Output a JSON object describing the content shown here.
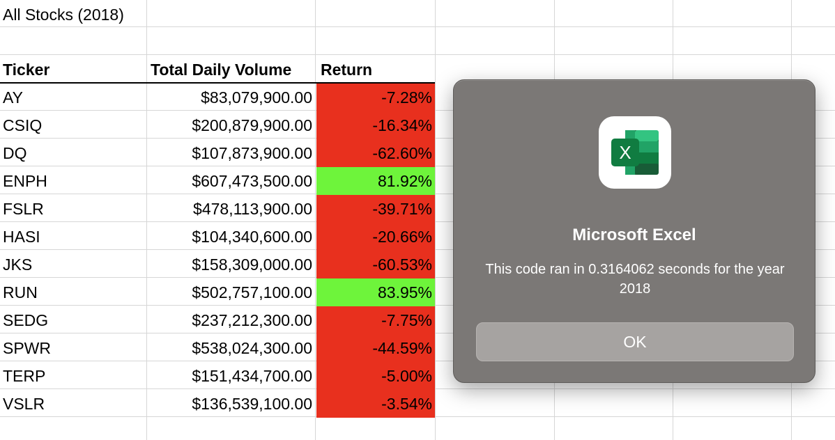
{
  "sheet": {
    "title": "All Stocks (2018)",
    "headers": {
      "ticker": "Ticker",
      "volume": "Total Daily Volume",
      "return": "Return"
    },
    "rows": [
      {
        "ticker": "AY",
        "volume": "$83,079,900.00",
        "return": "-7.28%",
        "status": "negative"
      },
      {
        "ticker": "CSIQ",
        "volume": "$200,879,900.00",
        "return": "-16.34%",
        "status": "negative"
      },
      {
        "ticker": "DQ",
        "volume": "$107,873,900.00",
        "return": "-62.60%",
        "status": "negative"
      },
      {
        "ticker": "ENPH",
        "volume": "$607,473,500.00",
        "return": "81.92%",
        "status": "positive"
      },
      {
        "ticker": "FSLR",
        "volume": "$478,113,900.00",
        "return": "-39.71%",
        "status": "negative"
      },
      {
        "ticker": "HASI",
        "volume": "$104,340,600.00",
        "return": "-20.66%",
        "status": "negative"
      },
      {
        "ticker": "JKS",
        "volume": "$158,309,000.00",
        "return": "-60.53%",
        "status": "negative"
      },
      {
        "ticker": "RUN",
        "volume": "$502,757,100.00",
        "return": "83.95%",
        "status": "positive"
      },
      {
        "ticker": "SEDG",
        "volume": "$237,212,300.00",
        "return": "-7.75%",
        "status": "negative"
      },
      {
        "ticker": "SPWR",
        "volume": "$538,024,300.00",
        "return": "-44.59%",
        "status": "negative"
      },
      {
        "ticker": "TERP",
        "volume": "$151,434,700.00",
        "return": "-5.00%",
        "status": "negative"
      },
      {
        "ticker": "VSLR",
        "volume": "$136,539,100.00",
        "return": "-3.54%",
        "status": "negative"
      }
    ],
    "colors": {
      "negative": "#e8301e",
      "positive": "#6ef43b"
    }
  },
  "dialog": {
    "icon": "excel-app-icon",
    "icon_letter": "X",
    "title": "Microsoft Excel",
    "message": "This code ran in 0.3164062 seconds for the year 2018",
    "ok_label": "OK"
  }
}
